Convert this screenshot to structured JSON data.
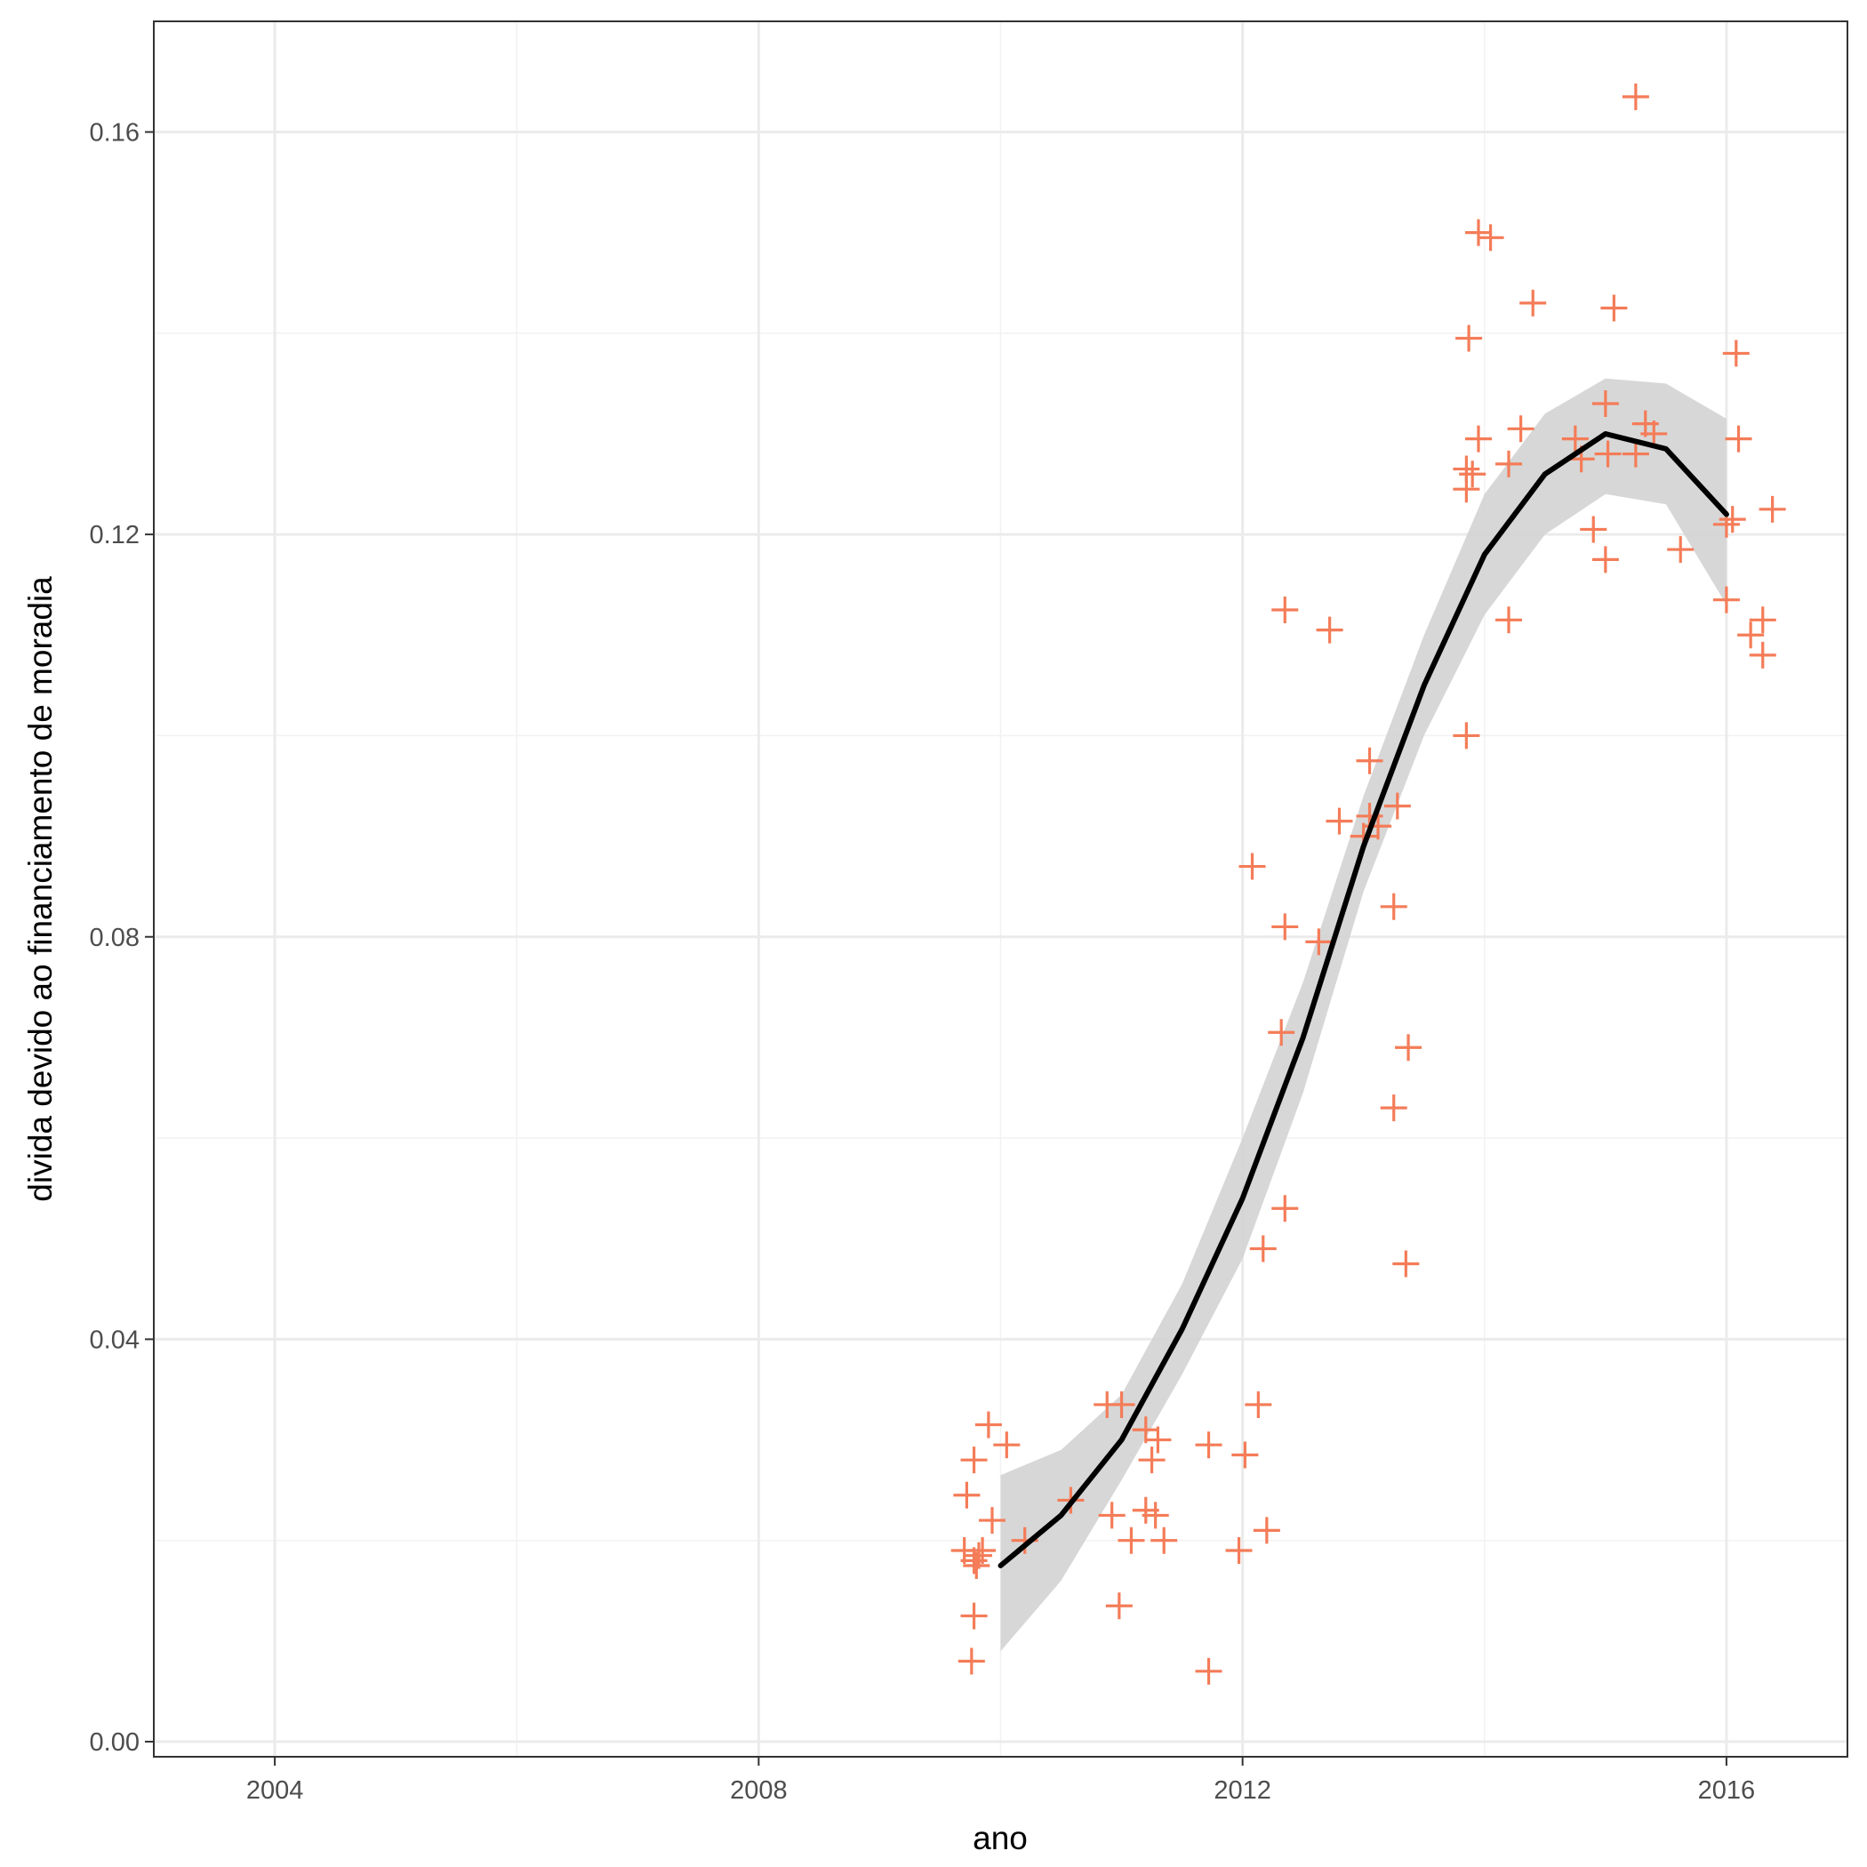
{
  "chart_data": {
    "type": "scatter",
    "xlabel": "ano",
    "ylabel": "divida devido ao financiamento de moradia",
    "xlim": [
      2003,
      2017
    ],
    "ylim": [
      -0.0015,
      0.171
    ],
    "x_ticks": [
      2004,
      2008,
      2012,
      2016
    ],
    "x_tick_labels": [
      "2004",
      "2008",
      "2012",
      "2016"
    ],
    "y_ticks": [
      0.0,
      0.04,
      0.08,
      0.12,
      0.16
    ],
    "y_tick_labels": [
      "0.00",
      "0.04",
      "0.08",
      "0.12",
      "0.16"
    ],
    "grid": true,
    "point_marker": "plus",
    "point_color": "#F47C58",
    "points": [
      {
        "x": 2009.72,
        "y": 0.0245
      },
      {
        "x": 2009.7,
        "y": 0.019
      },
      {
        "x": 2009.78,
        "y": 0.018
      },
      {
        "x": 2009.8,
        "y": 0.0175
      },
      {
        "x": 2009.82,
        "y": 0.0185
      },
      {
        "x": 2009.85,
        "y": 0.019
      },
      {
        "x": 2009.78,
        "y": 0.028
      },
      {
        "x": 2009.9,
        "y": 0.0315
      },
      {
        "x": 2010.05,
        "y": 0.0295
      },
      {
        "x": 2009.93,
        "y": 0.022
      },
      {
        "x": 2009.78,
        "y": 0.0125
      },
      {
        "x": 2009.76,
        "y": 0.008
      },
      {
        "x": 2010.2,
        "y": 0.02
      },
      {
        "x": 2010.58,
        "y": 0.024
      },
      {
        "x": 2010.88,
        "y": 0.0335
      },
      {
        "x": 2011.0,
        "y": 0.0335
      },
      {
        "x": 2010.92,
        "y": 0.0225
      },
      {
        "x": 2011.08,
        "y": 0.02
      },
      {
        "x": 2010.98,
        "y": 0.0135
      },
      {
        "x": 2011.2,
        "y": 0.031
      },
      {
        "x": 2011.25,
        "y": 0.028
      },
      {
        "x": 2011.3,
        "y": 0.03
      },
      {
        "x": 2011.2,
        "y": 0.023
      },
      {
        "x": 2011.28,
        "y": 0.0225
      },
      {
        "x": 2011.35,
        "y": 0.02
      },
      {
        "x": 2011.72,
        "y": 0.0295
      },
      {
        "x": 2011.72,
        "y": 0.007
      },
      {
        "x": 2011.97,
        "y": 0.019
      },
      {
        "x": 2012.02,
        "y": 0.0285
      },
      {
        "x": 2012.13,
        "y": 0.0335
      },
      {
        "x": 2012.2,
        "y": 0.021
      },
      {
        "x": 2012.17,
        "y": 0.049
      },
      {
        "x": 2012.35,
        "y": 0.053
      },
      {
        "x": 2012.08,
        "y": 0.087
      },
      {
        "x": 2012.35,
        "y": 0.081
      },
      {
        "x": 2012.32,
        "y": 0.0705
      },
      {
        "x": 2012.35,
        "y": 0.1125
      },
      {
        "x": 2012.63,
        "y": 0.0795
      },
      {
        "x": 2012.72,
        "y": 0.1105
      },
      {
        "x": 2012.8,
        "y": 0.0915
      },
      {
        "x": 2013.0,
        "y": 0.09
      },
      {
        "x": 2013.05,
        "y": 0.092
      },
      {
        "x": 2013.05,
        "y": 0.0975
      },
      {
        "x": 2013.12,
        "y": 0.091
      },
      {
        "x": 2013.28,
        "y": 0.093
      },
      {
        "x": 2013.25,
        "y": 0.083
      },
      {
        "x": 2013.25,
        "y": 0.063
      },
      {
        "x": 2013.37,
        "y": 0.069
      },
      {
        "x": 2013.35,
        "y": 0.0475
      },
      {
        "x": 2013.85,
        "y": 0.1
      },
      {
        "x": 2013.85,
        "y": 0.1245
      },
      {
        "x": 2013.85,
        "y": 0.1265
      },
      {
        "x": 2013.9,
        "y": 0.126
      },
      {
        "x": 2013.87,
        "y": 0.1395
      },
      {
        "x": 2013.95,
        "y": 0.1295
      },
      {
        "x": 2013.95,
        "y": 0.15
      },
      {
        "x": 2014.05,
        "y": 0.1495
      },
      {
        "x": 2014.2,
        "y": 0.127
      },
      {
        "x": 2014.3,
        "y": 0.1305
      },
      {
        "x": 2014.2,
        "y": 0.1115
      },
      {
        "x": 2014.4,
        "y": 0.143
      },
      {
        "x": 2014.75,
        "y": 0.1295
      },
      {
        "x": 2014.8,
        "y": 0.1275
      },
      {
        "x": 2014.9,
        "y": 0.1205
      },
      {
        "x": 2015.0,
        "y": 0.1175
      },
      {
        "x": 2015.0,
        "y": 0.133
      },
      {
        "x": 2015.02,
        "y": 0.128
      },
      {
        "x": 2015.07,
        "y": 0.1425
      },
      {
        "x": 2015.25,
        "y": 0.128
      },
      {
        "x": 2015.33,
        "y": 0.131
      },
      {
        "x": 2015.4,
        "y": 0.13
      },
      {
        "x": 2015.25,
        "y": 0.1635
      },
      {
        "x": 2015.62,
        "y": 0.1185
      },
      {
        "x": 2016.0,
        "y": 0.121
      },
      {
        "x": 2016.05,
        "y": 0.1215
      },
      {
        "x": 2016.08,
        "y": 0.138
      },
      {
        "x": 2016.1,
        "y": 0.1295
      },
      {
        "x": 2016.0,
        "y": 0.1135
      },
      {
        "x": 2016.2,
        "y": 0.11
      },
      {
        "x": 2016.3,
        "y": 0.1115
      },
      {
        "x": 2016.3,
        "y": 0.108
      },
      {
        "x": 2016.38,
        "y": 0.1225
      }
    ],
    "smooth": {
      "color": "#000000",
      "band_color": "#D3D3D3",
      "x": [
        2010.0,
        2010.5,
        2011.0,
        2011.5,
        2012.0,
        2012.5,
        2013.0,
        2013.5,
        2014.0,
        2014.5,
        2015.0,
        2015.5,
        2016.0
      ],
      "y": [
        0.0175,
        0.0225,
        0.03,
        0.041,
        0.054,
        0.07,
        0.089,
        0.105,
        0.118,
        0.126,
        0.13,
        0.1285,
        0.122
      ],
      "ymin": [
        0.009,
        0.016,
        0.026,
        0.0365,
        0.048,
        0.0645,
        0.0845,
        0.1,
        0.112,
        0.12,
        0.124,
        0.123,
        0.113
      ],
      "ymax": [
        0.0265,
        0.029,
        0.0345,
        0.0455,
        0.06,
        0.0755,
        0.094,
        0.11,
        0.124,
        0.132,
        0.1355,
        0.135,
        0.1315
      ]
    }
  }
}
